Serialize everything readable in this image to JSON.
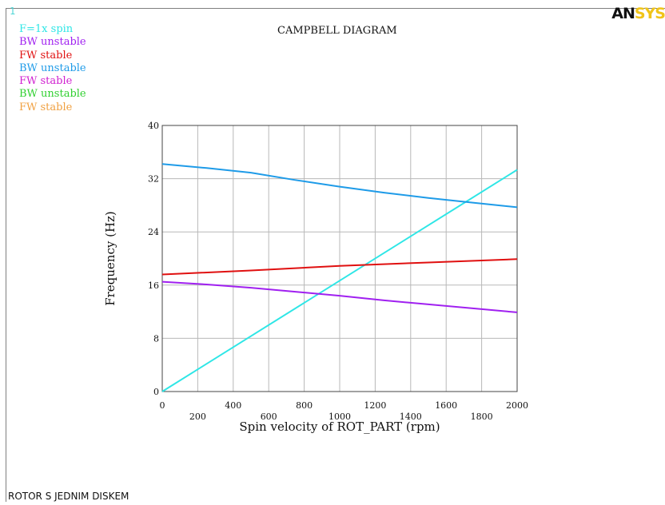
{
  "window_number": "1",
  "title": "CAMPBELL DIAGRAM",
  "footer": "ROTOR S JEDNIM DISKEM",
  "logo": {
    "part1": "AN",
    "part2": "SYS"
  },
  "legend": [
    {
      "label": "F=1x spin",
      "color": "#2ee6e6"
    },
    {
      "label": "BW unstable",
      "color": "#a020f0"
    },
    {
      "label": "FW stable",
      "color": "#e01010"
    },
    {
      "label": "BW unstable",
      "color": "#1e9be8"
    },
    {
      "label": "FW stable",
      "color": "#d020d0"
    },
    {
      "label": "BW unstable",
      "color": "#30d030"
    },
    {
      "label": "FW stable",
      "color": "#f0a040"
    }
  ],
  "chart_data": {
    "type": "line",
    "title": "CAMPBELL DIAGRAM",
    "xlabel": "Spin velocity of ROT_PART (rpm)",
    "ylabel": "Frequency (Hz)",
    "xlim": [
      0,
      2000
    ],
    "ylim": [
      0,
      40
    ],
    "x_ticks": [
      0,
      200,
      400,
      600,
      800,
      1000,
      1200,
      1400,
      1600,
      1800,
      2000
    ],
    "y_ticks": [
      0,
      8,
      16,
      24,
      32,
      40
    ],
    "grid": true,
    "legend_position": "top-left",
    "series": [
      {
        "name": "F=1x spin",
        "color": "#2ee6e6",
        "x": [
          0,
          2000
        ],
        "y": [
          0,
          33.33
        ]
      },
      {
        "name": "BW unstable",
        "color": "#1e9be8",
        "x": [
          0,
          250,
          500,
          750,
          1000,
          1250,
          1500,
          1750,
          2000
        ],
        "y": [
          34.2,
          33.6,
          32.9,
          31.8,
          30.8,
          29.9,
          29.1,
          28.4,
          27.7
        ]
      },
      {
        "name": "FW stable",
        "color": "#e01010",
        "x": [
          0,
          500,
          1000,
          1500,
          2000
        ],
        "y": [
          17.6,
          18.2,
          18.9,
          19.4,
          19.9
        ]
      },
      {
        "name": "BW unstable",
        "color": "#a020f0",
        "x": [
          0,
          250,
          500,
          750,
          1000,
          1250,
          1500,
          1750,
          2000
        ],
        "y": [
          16.5,
          16.1,
          15.6,
          15.0,
          14.4,
          13.7,
          13.1,
          12.5,
          11.9
        ]
      }
    ]
  }
}
